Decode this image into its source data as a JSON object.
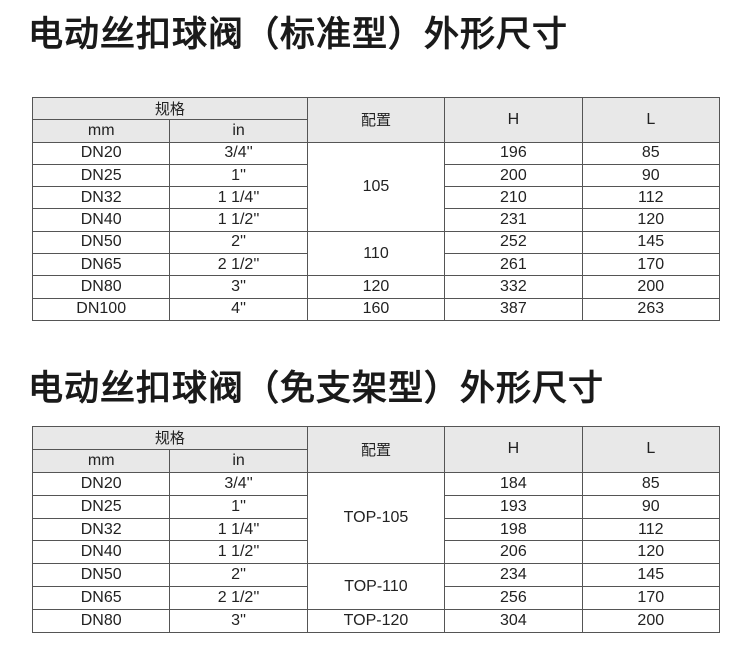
{
  "tables": [
    {
      "title": "电动丝扣球阀（标准型）外形尺寸",
      "headers": {
        "spec": "规格",
        "mm": "mm",
        "in": "in",
        "config": "配置",
        "h": "H",
        "l": "L"
      },
      "rows": [
        {
          "mm": "DN20",
          "in": "3/4''",
          "config": "105",
          "span": 4,
          "h": "196",
          "l": "85"
        },
        {
          "mm": "DN25",
          "in": "1''",
          "h": "200",
          "l": "90"
        },
        {
          "mm": "DN32",
          "in": "1 1/4''",
          "h": "210",
          "l": "112"
        },
        {
          "mm": "DN40",
          "in": "1 1/2''",
          "h": "231",
          "l": "120"
        },
        {
          "mm": "DN50",
          "in": "2''",
          "config": "110",
          "span": 2,
          "h": "252",
          "l": "145"
        },
        {
          "mm": "DN65",
          "in": "2 1/2''",
          "h": "261",
          "l": "170"
        },
        {
          "mm": "DN80",
          "in": "3''",
          "config": "120",
          "span": 1,
          "h": "332",
          "l": "200"
        },
        {
          "mm": "DN100",
          "in": "4''",
          "config": "160",
          "span": 1,
          "h": "387",
          "l": "263"
        }
      ]
    },
    {
      "title": "电动丝扣球阀（免支架型）外形尺寸",
      "headers": {
        "spec": "规格",
        "mm": "mm",
        "in": "in",
        "config": "配置",
        "h": "H",
        "l": "L"
      },
      "rows": [
        {
          "mm": "DN20",
          "in": "3/4''",
          "config": "TOP-105",
          "span": 4,
          "h": "184",
          "l": "85"
        },
        {
          "mm": "DN25",
          "in": "1''",
          "h": "193",
          "l": "90"
        },
        {
          "mm": "DN32",
          "in": "1 1/4''",
          "h": "198",
          "l": "112"
        },
        {
          "mm": "DN40",
          "in": "1 1/2''",
          "h": "206",
          "l": "120"
        },
        {
          "mm": "DN50",
          "in": "2''",
          "config": "TOP-110",
          "span": 2,
          "h": "234",
          "l": "145"
        },
        {
          "mm": "DN65",
          "in": "2 1/2''",
          "h": "256",
          "l": "170"
        },
        {
          "mm": "DN80",
          "in": "3''",
          "config": "TOP-120",
          "span": 1,
          "h": "304",
          "l": "200"
        }
      ]
    }
  ]
}
